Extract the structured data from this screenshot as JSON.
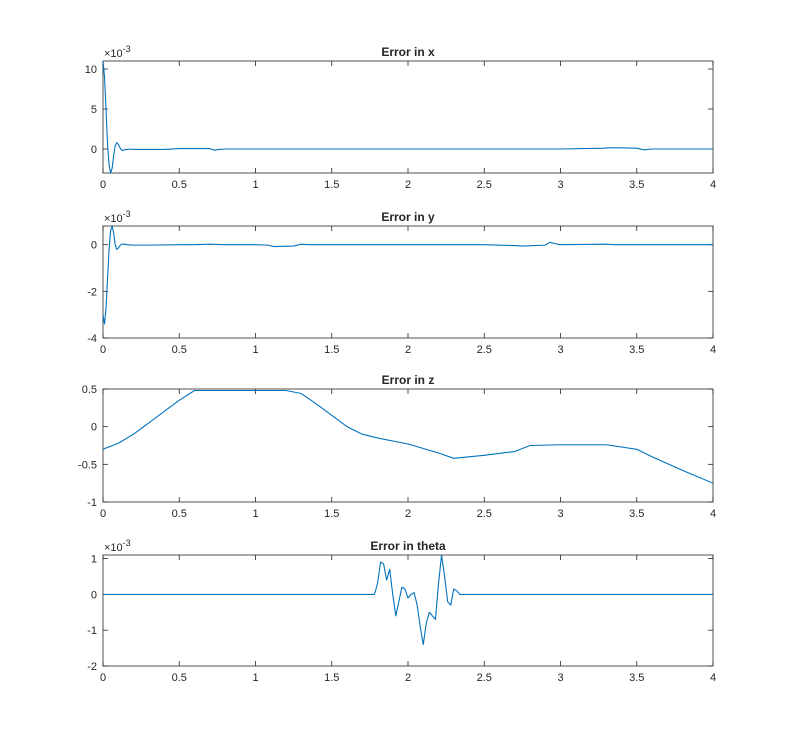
{
  "chart_data": [
    {
      "type": "line",
      "title": "Error in x",
      "xlim": [
        0,
        4
      ],
      "ylim": [
        -3,
        11
      ],
      "xticks": [
        "0",
        "0.5",
        "1",
        "1.5",
        "2",
        "2.5",
        "3",
        "3.5",
        "4"
      ],
      "yticks": [
        "0",
        "5",
        "10"
      ],
      "y_exponent": "×10",
      "y_exponent_power": "-3",
      "color": "#0072BD",
      "x": [
        0,
        0.01,
        0.02,
        0.03,
        0.04,
        0.05,
        0.06,
        0.07,
        0.08,
        0.09,
        0.1,
        0.11,
        0.12,
        0.13,
        0.14,
        0.16,
        0.18,
        0.2,
        0.25,
        0.3,
        0.4,
        0.5,
        0.55,
        0.6,
        0.7,
        0.73,
        0.76,
        0.8,
        1.0,
        1.5,
        2.0,
        2.5,
        2.9,
        3.0,
        3.28,
        3.32,
        3.4,
        3.5,
        3.55,
        3.6,
        3.7,
        4.0
      ],
      "y": [
        11,
        9,
        5,
        0.5,
        -2,
        -3,
        -2.4,
        -0.8,
        0.4,
        0.8,
        0.6,
        0.2,
        -0.1,
        -0.2,
        -0.1,
        -0.05,
        0,
        -0.05,
        -0.05,
        -0.05,
        -0.05,
        0.05,
        0.05,
        0.05,
        0.05,
        -0.15,
        -0.05,
        0,
        0,
        0,
        0,
        0,
        0,
        0,
        0.1,
        0.15,
        0.15,
        0.1,
        -0.1,
        0,
        0,
        0
      ]
    },
    {
      "type": "line",
      "title": "Error in y",
      "xlim": [
        0,
        4
      ],
      "ylim": [
        -4,
        0.8
      ],
      "xticks": [
        "0",
        "0.5",
        "1",
        "1.5",
        "2",
        "2.5",
        "3",
        "3.5",
        "4"
      ],
      "yticks": [
        "-4",
        "-2",
        "0"
      ],
      "y_exponent": "×10",
      "y_exponent_power": "-3",
      "color": "#0072BD",
      "x": [
        0,
        0.01,
        0.02,
        0.03,
        0.04,
        0.05,
        0.06,
        0.07,
        0.08,
        0.09,
        0.1,
        0.11,
        0.12,
        0.14,
        0.16,
        0.2,
        0.3,
        0.5,
        0.6,
        0.7,
        0.8,
        1.0,
        1.08,
        1.12,
        1.25,
        1.3,
        1.35,
        1.5,
        2.0,
        2.5,
        2.7,
        2.75,
        2.9,
        2.93,
        2.96,
        3.0,
        3.3,
        3.35,
        4.0
      ],
      "y": [
        -3.0,
        -3.4,
        -2.7,
        -1.4,
        -0.2,
        0.6,
        0.8,
        0.5,
        0.0,
        -0.2,
        -0.15,
        -0.05,
        0.02,
        0.02,
        0.0,
        -0.02,
        -0.02,
        0.0,
        0.0,
        0.02,
        0.0,
        0.0,
        -0.02,
        -0.08,
        -0.06,
        0.02,
        0.0,
        0.0,
        0.0,
        0.0,
        -0.04,
        -0.06,
        -0.02,
        0.1,
        0.05,
        0.0,
        0.02,
        0.0,
        0.0
      ]
    },
    {
      "type": "line",
      "title": "Error in z",
      "xlim": [
        0,
        4
      ],
      "ylim": [
        -1,
        0.5
      ],
      "xticks": [
        "0",
        "0.5",
        "1",
        "1.5",
        "2",
        "2.5",
        "3",
        "3.5",
        "4"
      ],
      "yticks": [
        "-1",
        "-0.5",
        "0",
        "0.5"
      ],
      "color": "#0072BD",
      "x": [
        0,
        0.1,
        0.2,
        0.3,
        0.4,
        0.5,
        0.6,
        1.2,
        1.3,
        1.4,
        1.5,
        1.6,
        1.7,
        1.8,
        2.0,
        2.2,
        2.3,
        2.5,
        2.7,
        2.8,
        3.0,
        3.3,
        3.5,
        3.6,
        3.8,
        4.0
      ],
      "y": [
        -0.3,
        -0.22,
        -0.1,
        0.05,
        0.2,
        0.35,
        0.48,
        0.48,
        0.44,
        0.3,
        0.15,
        0.0,
        -0.1,
        -0.15,
        -0.23,
        -0.35,
        -0.42,
        -0.38,
        -0.33,
        -0.25,
        -0.24,
        -0.24,
        -0.3,
        -0.4,
        -0.58,
        -0.75
      ]
    },
    {
      "type": "line",
      "title": "Error in theta",
      "xlim": [
        0,
        4
      ],
      "ylim": [
        -2,
        1.1
      ],
      "xticks": [
        "0",
        "0.5",
        "1",
        "1.5",
        "2",
        "2.5",
        "3",
        "3.5",
        "4"
      ],
      "yticks": [
        "-2",
        "-1",
        "0",
        "1"
      ],
      "y_exponent": "×10",
      "y_exponent_power": "-3",
      "color": "#0072BD",
      "x": [
        0,
        1.78,
        1.8,
        1.82,
        1.84,
        1.86,
        1.88,
        1.9,
        1.92,
        1.94,
        1.96,
        1.98,
        2.0,
        2.02,
        2.04,
        2.06,
        2.08,
        2.1,
        2.12,
        2.14,
        2.16,
        2.18,
        2.2,
        2.22,
        2.24,
        2.26,
        2.28,
        2.3,
        2.32,
        2.34,
        2.36,
        2.4,
        4.0
      ],
      "y": [
        0,
        0,
        0.3,
        0.9,
        0.85,
        0.4,
        0.7,
        0.0,
        -0.6,
        -0.2,
        0.2,
        0.15,
        -0.1,
        0.0,
        0.05,
        -0.3,
        -0.9,
        -1.4,
        -0.8,
        -0.5,
        -0.6,
        -0.7,
        0.3,
        1.1,
        0.5,
        -0.2,
        -0.3,
        0.15,
        0.1,
        0.0,
        0.0,
        0.0,
        0
      ]
    }
  ]
}
